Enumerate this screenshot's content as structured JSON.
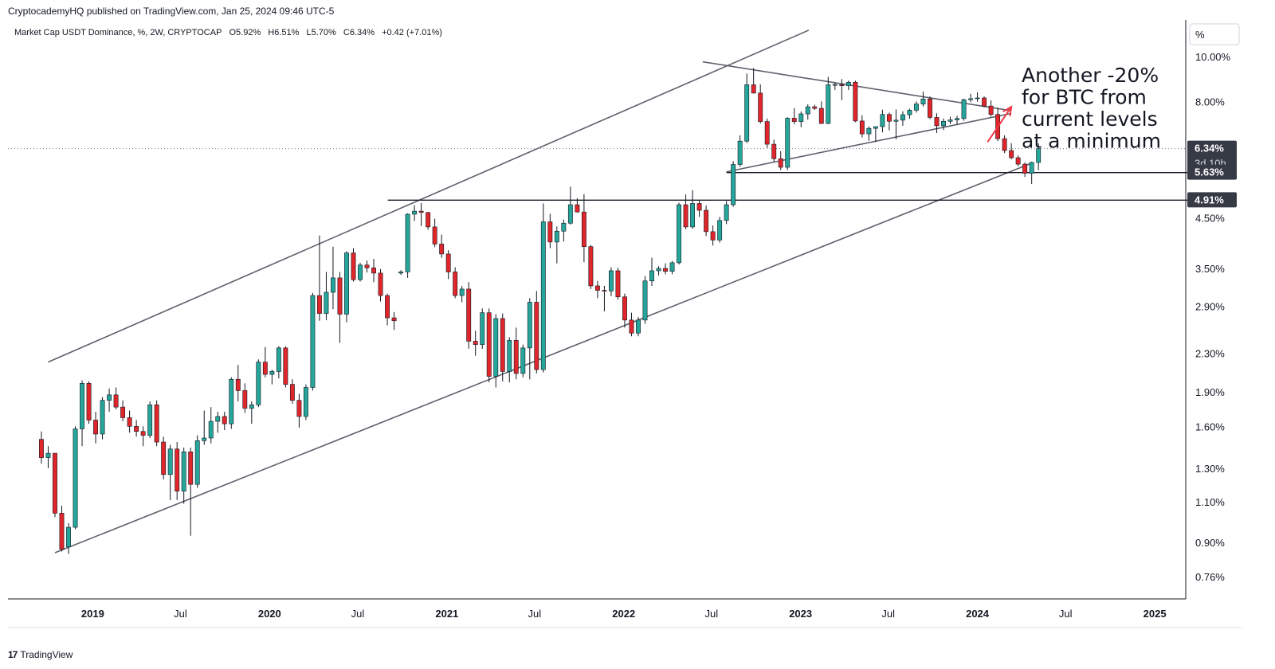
{
  "header": {
    "publish_line": "CryptocademyHQ published on TradingView.com, Jan 25, 2024 09:46 UTC-5",
    "symbol": "Market Cap USDT Dominance, %, 2W, CRYPTOCAP",
    "ohlc": {
      "open": "O5.92%",
      "high": "H6.51%",
      "low": "L5.70%",
      "close": "C6.34%",
      "change": "+0.42 (+7.01%)"
    }
  },
  "scale_button": "%",
  "footer": {
    "logo": "17",
    "brand": "TradingView"
  },
  "colors": {
    "up": "#26a69a",
    "down": "#e0262b",
    "line": "#5d606b",
    "arrow": "#f23645",
    "price_label_bg": "#363a45"
  },
  "chart_data": {
    "type": "candlestick",
    "title": "Market Cap USDT Dominance, %, 2W, CRYPTOCAP",
    "y_scale": "log",
    "ylim": [
      0.68,
      12.0
    ],
    "y_ticks": [
      "10.00%",
      "8.00%",
      "4.50%",
      "3.50%",
      "2.90%",
      "2.30%",
      "1.90%",
      "1.60%",
      "1.30%",
      "1.10%",
      "0.90%",
      "0.76%"
    ],
    "y_tick_values": [
      10.0,
      8.0,
      4.5,
      3.5,
      2.9,
      2.3,
      1.9,
      1.6,
      1.3,
      1.1,
      0.9,
      0.76
    ],
    "x_ticks": [
      {
        "label": "2019",
        "date": "2019-01-01",
        "bold": true
      },
      {
        "label": "Jul",
        "date": "2019-07-01",
        "bold": false
      },
      {
        "label": "2020",
        "date": "2020-01-01",
        "bold": true
      },
      {
        "label": "Jul",
        "date": "2020-07-01",
        "bold": false
      },
      {
        "label": "2021",
        "date": "2021-01-01",
        "bold": true
      },
      {
        "label": "Jul",
        "date": "2021-07-01",
        "bold": false
      },
      {
        "label": "2022",
        "date": "2022-01-01",
        "bold": true
      },
      {
        "label": "Jul",
        "date": "2022-07-01",
        "bold": false
      },
      {
        "label": "2023",
        "date": "2023-01-01",
        "bold": true
      },
      {
        "label": "Jul",
        "date": "2023-07-01",
        "bold": false
      },
      {
        "label": "2024",
        "date": "2024-01-01",
        "bold": true
      },
      {
        "label": "Jul",
        "date": "2024-07-01",
        "bold": false
      },
      {
        "label": "2025",
        "date": "2025-01-01",
        "bold": true
      }
    ],
    "price_labels": [
      {
        "text": "6.34%",
        "value": 6.34,
        "sub": "3d 10h"
      },
      {
        "text": "5.63%",
        "value": 5.63,
        "sub": ""
      },
      {
        "text": "4.91%",
        "value": 4.91,
        "sub": ""
      }
    ],
    "series_start": "2018-09-17",
    "period_days": 14,
    "candles": [
      [
        1.5,
        1.56,
        1.33,
        1.37
      ],
      [
        1.37,
        1.45,
        1.3,
        1.4
      ],
      [
        1.4,
        1.4,
        1.02,
        1.04
      ],
      [
        1.04,
        1.08,
        0.86,
        0.87
      ],
      [
        0.88,
        0.99,
        0.85,
        0.97
      ],
      [
        0.97,
        1.6,
        0.96,
        1.58
      ],
      [
        1.58,
        2.01,
        1.45,
        1.98
      ],
      [
        1.98,
        2.0,
        1.62,
        1.65
      ],
      [
        1.65,
        1.72,
        1.47,
        1.54
      ],
      [
        1.54,
        1.85,
        1.5,
        1.82
      ],
      [
        1.82,
        1.93,
        1.72,
        1.87
      ],
      [
        1.87,
        1.94,
        1.74,
        1.76
      ],
      [
        1.76,
        1.82,
        1.64,
        1.67
      ],
      [
        1.67,
        1.73,
        1.55,
        1.6
      ],
      [
        1.6,
        1.65,
        1.52,
        1.56
      ],
      [
        1.56,
        1.6,
        1.45,
        1.53
      ],
      [
        1.53,
        1.81,
        1.51,
        1.78
      ],
      [
        1.78,
        1.82,
        1.45,
        1.48
      ],
      [
        1.48,
        1.52,
        1.23,
        1.26
      ],
      [
        1.26,
        1.46,
        1.11,
        1.43
      ],
      [
        1.43,
        1.48,
        1.11,
        1.16
      ],
      [
        1.16,
        1.44,
        1.09,
        1.41
      ],
      [
        1.41,
        1.44,
        0.93,
        1.2
      ],
      [
        1.2,
        1.53,
        1.18,
        1.49
      ],
      [
        1.49,
        1.73,
        1.46,
        1.51
      ],
      [
        1.51,
        1.76,
        1.47,
        1.64
      ],
      [
        1.64,
        1.72,
        1.55,
        1.68
      ],
      [
        1.68,
        1.72,
        1.57,
        1.62
      ],
      [
        1.62,
        2.04,
        1.58,
        2.02
      ],
      [
        2.02,
        2.17,
        1.81,
        1.91
      ],
      [
        1.91,
        1.98,
        1.71,
        1.75
      ],
      [
        1.75,
        1.81,
        1.62,
        1.78
      ],
      [
        1.78,
        2.23,
        1.76,
        2.2
      ],
      [
        2.2,
        2.37,
        2.04,
        2.07
      ],
      [
        2.07,
        2.12,
        1.97,
        2.1
      ],
      [
        2.1,
        2.38,
        2.03,
        2.36
      ],
      [
        2.36,
        2.38,
        1.94,
        1.97
      ],
      [
        1.97,
        2.02,
        1.79,
        1.82
      ],
      [
        1.82,
        1.88,
        1.59,
        1.68
      ],
      [
        1.68,
        1.97,
        1.65,
        1.94
      ],
      [
        1.94,
        3.1,
        1.91,
        3.06
      ],
      [
        3.06,
        4.12,
        2.7,
        2.8
      ],
      [
        2.8,
        3.44,
        2.71,
        3.11
      ],
      [
        3.11,
        3.9,
        2.86,
        3.34
      ],
      [
        3.34,
        3.44,
        2.42,
        2.79
      ],
      [
        2.79,
        3.81,
        2.68,
        3.78
      ],
      [
        3.78,
        3.87,
        3.28,
        3.31
      ],
      [
        3.31,
        3.6,
        3.28,
        3.56
      ],
      [
        3.56,
        3.64,
        3.43,
        3.51
      ],
      [
        3.51,
        3.67,
        3.27,
        3.42
      ],
      [
        3.42,
        3.49,
        2.97,
        3.06
      ],
      [
        3.06,
        3.09,
        2.64,
        2.74
      ],
      [
        2.74,
        2.82,
        2.58,
        2.7
      ],
      [
        3.42,
        3.47,
        3.39,
        3.44
      ],
      [
        3.44,
        4.6,
        3.34,
        4.58
      ],
      [
        4.58,
        4.79,
        4.43,
        4.65
      ],
      [
        4.65,
        4.84,
        4.32,
        4.62
      ],
      [
        4.62,
        4.63,
        4.24,
        4.3
      ],
      [
        4.3,
        4.48,
        3.89,
        3.95
      ],
      [
        3.95,
        4.14,
        3.69,
        3.76
      ],
      [
        3.76,
        3.83,
        3.32,
        3.44
      ],
      [
        3.44,
        3.52,
        3.02,
        3.06
      ],
      [
        3.06,
        3.21,
        2.96,
        3.16
      ],
      [
        3.16,
        3.27,
        2.35,
        2.44
      ],
      [
        2.44,
        2.57,
        2.27,
        2.4
      ],
      [
        2.4,
        2.87,
        2.35,
        2.81
      ],
      [
        2.81,
        2.87,
        1.99,
        2.05
      ],
      [
        2.05,
        2.79,
        1.94,
        2.73
      ],
      [
        2.73,
        2.8,
        2.0,
        2.1
      ],
      [
        2.1,
        2.49,
        1.99,
        2.45
      ],
      [
        2.45,
        2.61,
        2.02,
        2.08
      ],
      [
        2.08,
        2.4,
        2.04,
        2.36
      ],
      [
        2.36,
        3.02,
        2.02,
        2.96
      ],
      [
        2.96,
        3.13,
        2.08,
        2.12
      ],
      [
        2.12,
        4.83,
        2.09,
        4.41
      ],
      [
        4.41,
        4.59,
        3.87,
        3.99
      ],
      [
        3.99,
        4.31,
        3.59,
        4.21
      ],
      [
        4.21,
        4.46,
        4.0,
        4.38
      ],
      [
        4.38,
        5.25,
        4.35,
        4.8
      ],
      [
        4.8,
        4.96,
        4.62,
        4.63
      ],
      [
        4.63,
        5.06,
        3.61,
        3.9
      ],
      [
        3.9,
        3.93,
        3.16,
        3.21
      ],
      [
        3.21,
        3.29,
        3.02,
        3.14
      ],
      [
        3.14,
        3.21,
        2.83,
        3.13
      ],
      [
        3.13,
        3.52,
        3.05,
        3.46
      ],
      [
        3.46,
        3.51,
        3.0,
        3.04
      ],
      [
        3.04,
        3.09,
        2.61,
        2.71
      ],
      [
        2.71,
        2.81,
        2.5,
        2.54
      ],
      [
        2.54,
        2.75,
        2.5,
        2.71
      ],
      [
        2.71,
        3.37,
        2.66,
        3.29
      ],
      [
        3.29,
        3.69,
        3.21,
        3.46
      ],
      [
        3.46,
        3.54,
        3.38,
        3.5
      ],
      [
        3.5,
        3.59,
        3.4,
        3.45
      ],
      [
        3.45,
        3.63,
        3.4,
        3.6
      ],
      [
        3.6,
        4.85,
        3.57,
        4.8
      ],
      [
        4.8,
        5.05,
        4.25,
        4.3
      ],
      [
        4.3,
        5.16,
        4.26,
        4.83
      ],
      [
        4.83,
        4.92,
        4.52,
        4.67
      ],
      [
        4.67,
        4.78,
        4.11,
        4.2
      ],
      [
        4.2,
        4.33,
        3.92,
        4.03
      ],
      [
        4.03,
        4.52,
        3.98,
        4.44
      ],
      [
        4.44,
        4.89,
        4.36,
        4.8
      ],
      [
        4.8,
        5.96,
        4.75,
        5.86
      ],
      [
        5.86,
        6.77,
        5.79,
        6.58
      ],
      [
        6.58,
        9.2,
        6.52,
        8.7
      ],
      [
        8.7,
        9.45,
        8.33,
        8.35
      ],
      [
        8.35,
        8.72,
        7.18,
        7.25
      ],
      [
        7.25,
        7.36,
        6.36,
        6.48
      ],
      [
        6.48,
        6.63,
        5.94,
        6.03
      ],
      [
        6.03,
        6.26,
        5.7,
        5.78
      ],
      [
        5.78,
        7.41,
        5.7,
        7.37
      ],
      [
        7.37,
        7.75,
        7.15,
        7.25
      ],
      [
        7.25,
        7.62,
        7.05,
        7.53
      ],
      [
        7.53,
        7.9,
        7.32,
        7.8
      ],
      [
        7.8,
        7.88,
        7.68,
        7.74
      ],
      [
        7.74,
        8.01,
        7.17,
        7.18
      ],
      [
        7.18,
        9.05,
        7.16,
        8.7
      ],
      [
        8.7,
        8.8,
        8.48,
        8.71
      ],
      [
        8.71,
        8.95,
        8.06,
        8.66
      ],
      [
        8.66,
        8.88,
        8.48,
        8.81
      ],
      [
        8.81,
        8.88,
        7.23,
        7.27
      ],
      [
        7.27,
        7.48,
        6.7,
        6.82
      ],
      [
        6.82,
        7.08,
        6.59,
        7.01
      ],
      [
        7.01,
        7.05,
        6.55,
        7.07
      ],
      [
        7.07,
        7.69,
        6.87,
        7.51
      ],
      [
        7.51,
        7.58,
        6.94,
        7.26
      ],
      [
        7.26,
        7.7,
        6.64,
        7.3
      ],
      [
        7.3,
        7.63,
        7.1,
        7.5
      ],
      [
        7.5,
        7.73,
        7.35,
        7.67
      ],
      [
        7.67,
        8.01,
        7.58,
        7.91
      ],
      [
        7.91,
        8.41,
        7.81,
        8.11
      ],
      [
        8.11,
        8.21,
        7.34,
        7.4
      ],
      [
        7.4,
        7.55,
        6.85,
        7.1
      ],
      [
        7.1,
        7.36,
        6.95,
        7.26
      ],
      [
        7.26,
        7.42,
        7.16,
        7.31
      ],
      [
        7.31,
        7.46,
        7.15,
        7.36
      ],
      [
        7.36,
        8.12,
        7.28,
        8.08
      ],
      [
        8.08,
        8.32,
        7.98,
        8.12
      ],
      [
        8.12,
        8.38,
        8.0,
        8.15
      ],
      [
        8.15,
        8.21,
        7.78,
        7.83
      ],
      [
        7.83,
        8.05,
        7.43,
        7.51
      ],
      [
        7.51,
        7.77,
        6.58,
        6.66
      ],
      [
        6.66,
        6.77,
        6.2,
        6.28
      ],
      [
        6.28,
        6.51,
        6.01,
        6.06
      ],
      [
        6.06,
        6.13,
        5.81,
        5.87
      ],
      [
        5.87,
        5.92,
        5.51,
        5.61
      ],
      [
        5.61,
        5.94,
        5.32,
        5.92
      ],
      [
        5.92,
        6.51,
        5.7,
        6.34
      ]
    ],
    "drawings": [
      {
        "name": "channel-upper-line",
        "from": [
          "2018-10-01",
          2.2
        ],
        "to": [
          "2022-06-27",
          9.2
        ],
        "extend": 1.15
      },
      {
        "name": "channel-lower-line",
        "from": [
          "2018-10-15",
          0.855
        ],
        "to": [
          "2024-01-01",
          5.3
        ],
        "extend": 1.06
      },
      {
        "name": "triangle-top-line",
        "from": [
          "2022-06-13",
          9.75
        ],
        "to": [
          "2024-03-11",
          7.65
        ],
        "extend": 1.0
      },
      {
        "name": "triangle-bottom-line",
        "from": [
          "2022-08-01",
          5.65
        ],
        "to": [
          "2024-03-11",
          7.55
        ],
        "extend": 1.0
      },
      {
        "name": "support-line-563",
        "from": [
          "2022-08-01",
          5.63
        ],
        "to": [
          "2025-03-01",
          5.63
        ],
        "extend": 1.0
      },
      {
        "name": "resistance-line-491",
        "from": [
          "2020-09-01",
          4.91
        ],
        "to": [
          "2025-03-01",
          4.91
        ],
        "extend": 1.0
      }
    ],
    "annotation": {
      "lines": [
        "Another -20%",
        "for BTC from",
        "current levels",
        "at a minimum"
      ],
      "arrow_from": [
        "2024-01-22",
        6.55
      ],
      "arrow_to": [
        "2024-03-11",
        7.8
      ]
    }
  }
}
